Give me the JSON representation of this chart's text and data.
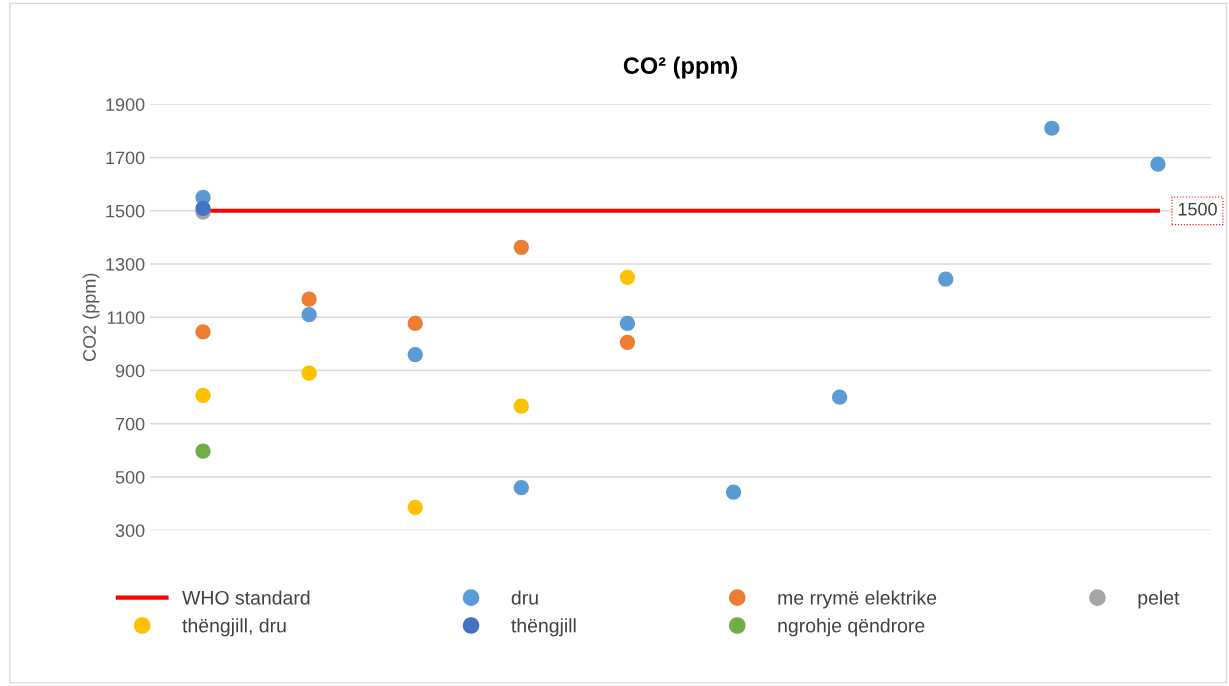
{
  "chart_data": {
    "type": "scatter",
    "title": "CO² (ppm)",
    "ylabel": "CO2 (ppm)",
    "categories": [
      null,
      null,
      null,
      null,
      null,
      null,
      null,
      null,
      null,
      null
    ],
    "ylim": [
      300,
      1900
    ],
    "yticks": [
      300,
      500,
      700,
      900,
      1100,
      1300,
      1500,
      1700,
      1900
    ],
    "grid": "y",
    "legend": "bottom",
    "marker": "circle",
    "series": [
      {
        "name": "WHO standard",
        "type": "line",
        "marker": "none",
        "color": "#ff0000",
        "values": [
          1500,
          1500,
          1500,
          1500,
          1500,
          1500,
          1500,
          1500,
          1500,
          1500
        ],
        "value_labels": [
          null,
          null,
          null,
          null,
          null,
          null,
          null,
          null,
          null,
          "1500"
        ]
      },
      {
        "name": "dru",
        "color": "#5b9bd5",
        "values": [
          1550,
          1110,
          960,
          460,
          1077,
          443,
          800,
          1243,
          1810,
          1675
        ]
      },
      {
        "name": "me rrymë elektrike",
        "color": "#ed7d31",
        "values": [
          1045,
          1168,
          1077,
          1363,
          1006,
          null,
          null,
          null,
          null,
          null
        ]
      },
      {
        "name": "pelet",
        "color": "#a5a5a5",
        "values": [
          1495,
          null,
          null,
          null,
          null,
          null,
          null,
          null,
          null,
          null
        ]
      },
      {
        "name": "thëngjill, dru",
        "color": "#ffc000",
        "values": [
          807,
          890,
          386,
          766,
          1250,
          null,
          null,
          null,
          null,
          null
        ]
      },
      {
        "name": "thëngjill",
        "color": "#4472c4",
        "values": [
          1509,
          null,
          null,
          null,
          null,
          null,
          null,
          null,
          null,
          null
        ]
      },
      {
        "name": "ngrohje qëndrore",
        "color": "#70ad47",
        "values": [
          597,
          null,
          null,
          null,
          null,
          null,
          null,
          null,
          null,
          null
        ]
      }
    ]
  }
}
